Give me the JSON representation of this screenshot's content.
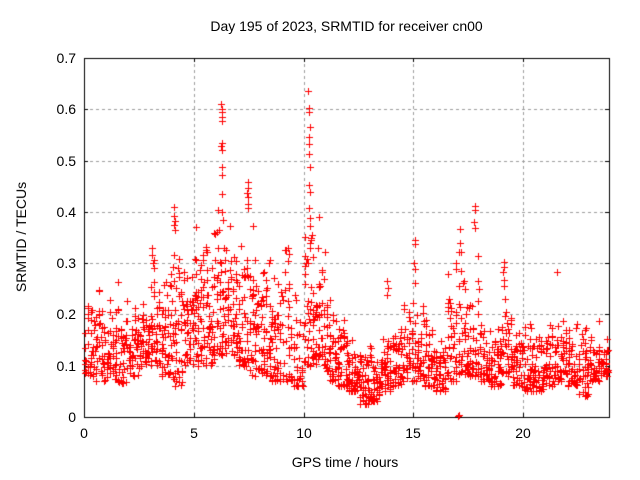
{
  "page": {
    "background": "#ffffff",
    "text_color": "#000000"
  },
  "chart_data": {
    "type": "scatter",
    "title": "Day 195 of 2023, SRMTID for receiver cn00",
    "xlabel": "GPS time / hours",
    "ylabel": "SRMTID / TECUs",
    "xlim": [
      0,
      23.9
    ],
    "ylim": [
      0,
      0.7
    ],
    "x_ticks": [
      0,
      5,
      10,
      15,
      20
    ],
    "x_tick_labels": [
      "0",
      "5",
      "10",
      "15",
      "20"
    ],
    "y_ticks": [
      0,
      0.1,
      0.2,
      0.3,
      0.4,
      0.5,
      0.6,
      0.7
    ],
    "y_tick_labels": [
      "0",
      "0.1",
      "0.2",
      "0.3",
      "0.4",
      "0.5",
      "0.6",
      "0.7"
    ],
    "grid": true,
    "grid_style": "dashed",
    "grid_color": "#9e9e9e",
    "axis_color": "#000000",
    "legend": "none",
    "marker": {
      "shape": "plus",
      "color": "#ff0000",
      "size": 7
    },
    "render_seed": 7,
    "point_bins_format": [
      "t_start_hours",
      "t_end_hours",
      "n_points",
      "value_min",
      "value_max",
      "low_bias_exponent"
    ],
    "point_bins": [
      [
        0.0,
        0.5,
        40,
        0.08,
        0.27,
        1.7
      ],
      [
        0.5,
        1.0,
        42,
        0.07,
        0.25,
        1.5
      ],
      [
        1.0,
        1.5,
        40,
        0.075,
        0.27,
        1.5
      ],
      [
        1.5,
        2.0,
        40,
        0.065,
        0.28,
        1.5
      ],
      [
        2.0,
        2.5,
        40,
        0.08,
        0.28,
        1.4
      ],
      [
        2.5,
        3.0,
        40,
        0.1,
        0.28,
        1.4
      ],
      [
        3.0,
        3.5,
        42,
        0.1,
        0.33,
        1.5
      ],
      [
        3.5,
        4.0,
        44,
        0.08,
        0.36,
        1.5
      ],
      [
        4.0,
        4.5,
        44,
        0.06,
        0.38,
        1.5
      ],
      [
        4.5,
        5.0,
        46,
        0.1,
        0.38,
        1.3
      ],
      [
        5.0,
        5.5,
        48,
        0.1,
        0.4,
        1.3
      ],
      [
        5.5,
        6.0,
        48,
        0.1,
        0.42,
        1.3
      ],
      [
        6.0,
        6.5,
        48,
        0.12,
        0.46,
        1.4
      ],
      [
        6.5,
        7.0,
        48,
        0.12,
        0.4,
        1.3
      ],
      [
        7.0,
        7.5,
        44,
        0.1,
        0.43,
        1.4
      ],
      [
        7.5,
        8.0,
        44,
        0.08,
        0.42,
        1.4
      ],
      [
        8.0,
        8.5,
        44,
        0.08,
        0.37,
        1.4
      ],
      [
        8.5,
        9.0,
        44,
        0.07,
        0.35,
        1.5
      ],
      [
        9.0,
        9.5,
        34,
        0.07,
        0.33,
        1.7
      ],
      [
        9.5,
        10.0,
        32,
        0.06,
        0.3,
        1.8
      ],
      [
        10.0,
        10.5,
        50,
        0.1,
        0.5,
        1.8
      ],
      [
        10.5,
        11.0,
        46,
        0.1,
        0.4,
        1.6
      ],
      [
        11.0,
        11.5,
        44,
        0.07,
        0.26,
        1.6
      ],
      [
        11.5,
        12.0,
        44,
        0.06,
        0.21,
        1.5
      ],
      [
        12.0,
        12.5,
        44,
        0.05,
        0.18,
        1.4
      ],
      [
        12.5,
        13.0,
        44,
        0.025,
        0.16,
        1.3
      ],
      [
        13.0,
        13.5,
        44,
        0.03,
        0.17,
        1.3
      ],
      [
        13.5,
        14.0,
        44,
        0.05,
        0.2,
        1.4
      ],
      [
        14.0,
        14.5,
        40,
        0.06,
        0.22,
        1.5
      ],
      [
        14.5,
        15.0,
        40,
        0.07,
        0.27,
        1.6
      ],
      [
        15.0,
        15.5,
        40,
        0.07,
        0.3,
        1.7
      ],
      [
        15.5,
        16.0,
        40,
        0.06,
        0.22,
        1.5
      ],
      [
        16.0,
        16.5,
        40,
        0.05,
        0.25,
        1.5
      ],
      [
        16.5,
        17.0,
        40,
        0.07,
        0.3,
        1.6
      ],
      [
        17.0,
        17.5,
        42,
        0.08,
        0.35,
        1.7
      ],
      [
        17.5,
        18.0,
        42,
        0.08,
        0.37,
        1.7
      ],
      [
        18.0,
        18.5,
        40,
        0.07,
        0.23,
        1.5
      ],
      [
        18.5,
        19.0,
        40,
        0.06,
        0.21,
        1.5
      ],
      [
        19.0,
        19.5,
        40,
        0.08,
        0.28,
        1.6
      ],
      [
        19.5,
        20.0,
        40,
        0.06,
        0.2,
        1.5
      ],
      [
        20.0,
        20.5,
        40,
        0.05,
        0.19,
        1.4
      ],
      [
        20.5,
        21.0,
        40,
        0.05,
        0.2,
        1.4
      ],
      [
        21.0,
        21.5,
        40,
        0.06,
        0.22,
        1.5
      ],
      [
        21.5,
        22.0,
        40,
        0.07,
        0.24,
        1.5
      ],
      [
        22.0,
        22.5,
        40,
        0.06,
        0.21,
        1.4
      ],
      [
        22.5,
        23.0,
        40,
        0.04,
        0.2,
        1.4
      ],
      [
        23.0,
        23.5,
        40,
        0.07,
        0.19,
        1.3
      ],
      [
        23.5,
        23.9,
        32,
        0.08,
        0.17,
        1.3
      ]
    ],
    "feature_points": [
      [
        6.25,
        0.61
      ],
      [
        6.27,
        0.6
      ],
      [
        6.26,
        0.595
      ],
      [
        6.28,
        0.585
      ],
      [
        6.26,
        0.578
      ],
      [
        6.27,
        0.535
      ],
      [
        6.25,
        0.528
      ],
      [
        6.3,
        0.52
      ],
      [
        6.28,
        0.487
      ],
      [
        6.26,
        0.472
      ],
      [
        6.29,
        0.435
      ],
      [
        6.27,
        0.4
      ],
      [
        6.31,
        0.385
      ],
      [
        7.45,
        0.458
      ],
      [
        7.47,
        0.447
      ],
      [
        7.44,
        0.437
      ],
      [
        7.46,
        0.428
      ],
      [
        7.48,
        0.415
      ],
      [
        7.45,
        0.408
      ],
      [
        4.1,
        0.41
      ],
      [
        4.08,
        0.392
      ],
      [
        4.12,
        0.382
      ],
      [
        4.1,
        0.374
      ],
      [
        4.14,
        0.365
      ],
      [
        10.22,
        0.635
      ],
      [
        10.25,
        0.602
      ],
      [
        10.24,
        0.594
      ],
      [
        10.27,
        0.565
      ],
      [
        10.23,
        0.545
      ],
      [
        10.26,
        0.532
      ],
      [
        10.25,
        0.512
      ],
      [
        10.28,
        0.488
      ],
      [
        10.24,
        0.452
      ],
      [
        10.27,
        0.438
      ],
      [
        10.26,
        0.408
      ],
      [
        10.3,
        0.388
      ],
      [
        10.29,
        0.372
      ],
      [
        10.32,
        0.345
      ],
      [
        10.28,
        0.33
      ],
      [
        9.3,
        0.33
      ],
      [
        9.32,
        0.318
      ],
      [
        9.28,
        0.305
      ],
      [
        3.1,
        0.33
      ],
      [
        3.08,
        0.315
      ],
      [
        3.12,
        0.3
      ],
      [
        15.05,
        0.345
      ],
      [
        15.07,
        0.338
      ],
      [
        15.04,
        0.3
      ],
      [
        15.08,
        0.288
      ],
      [
        15.06,
        0.262
      ],
      [
        13.8,
        0.265
      ],
      [
        13.82,
        0.252
      ],
      [
        13.78,
        0.238
      ],
      [
        17.1,
        0.366
      ],
      [
        17.12,
        0.34
      ],
      [
        17.08,
        0.322
      ],
      [
        16.95,
        0.3
      ],
      [
        16.93,
        0.288
      ],
      [
        17.78,
        0.412
      ],
      [
        17.8,
        0.404
      ],
      [
        17.76,
        0.38
      ],
      [
        17.79,
        0.368
      ],
      [
        19.1,
        0.302
      ],
      [
        19.12,
        0.292
      ],
      [
        19.08,
        0.282
      ],
      [
        19.14,
        0.268
      ],
      [
        19.1,
        0.255
      ],
      [
        21.55,
        0.282
      ],
      [
        17.02,
        0.002
      ],
      [
        17.08,
        0.004
      ]
    ]
  }
}
